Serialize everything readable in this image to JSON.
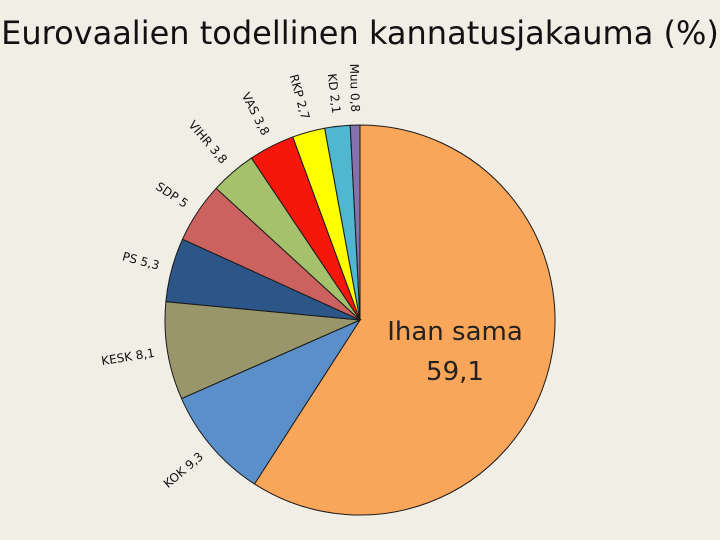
{
  "chart_data": {
    "type": "pie",
    "title": "Eurovaalien todellinen kannatusjakauma (%)",
    "start_angle_deg": 0,
    "direction": "clockwise",
    "slices": [
      {
        "category": "Ihan sama",
        "value_text": "59,1",
        "value": 59.1,
        "color": "#f9a65a"
      },
      {
        "category": "KOK",
        "value_text": "9,3",
        "value": 9.3,
        "color": "#5b8fc9"
      },
      {
        "category": "KESK",
        "value_text": "8,1",
        "value": 8.1,
        "color": "#99966b"
      },
      {
        "category": "PS",
        "value_text": "5,3",
        "value": 5.3,
        "color": "#2c5688"
      },
      {
        "category": "SDP",
        "value_text": "5",
        "value": 5,
        "color": "#cc625f"
      },
      {
        "category": "VIHR",
        "value_text": "3,8",
        "value": 3.8,
        "color": "#a5c16b"
      },
      {
        "category": "VAS",
        "value_text": "3,8",
        "value": 3.8,
        "color": "#f5160c"
      },
      {
        "category": "RKP",
        "value_text": "2,7",
        "value": 2.7,
        "color": "#fefe00"
      },
      {
        "category": "KD",
        "value_text": "2,1",
        "value": 2.1,
        "color": "#4fb7cf"
      },
      {
        "category": "Muu",
        "value_text": "0,8",
        "value": 0.8,
        "color": "#8472ad"
      }
    ]
  }
}
